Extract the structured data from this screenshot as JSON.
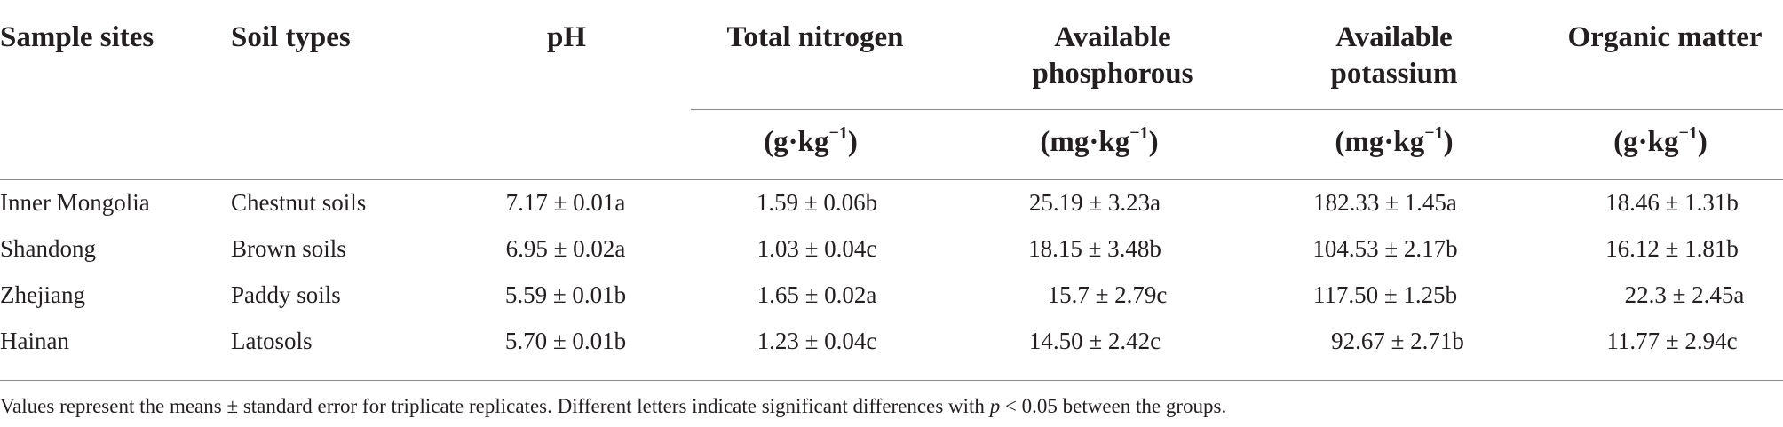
{
  "headers": {
    "sample_sites": "Sample sites",
    "soil_types": "Soil types",
    "ph": "pH",
    "total_nitrogen": "Total nitrogen",
    "available_phosphorous_line1": "Available",
    "available_phosphorous_line2": "phosphorous",
    "available_potassium_line1": "Available",
    "available_potassium_line2": "potassium",
    "organic_matter": "Organic matter"
  },
  "units": {
    "total_nitrogen": {
      "base": "(g·kg",
      "exp": "−1",
      "close": ")"
    },
    "available_phosphorous": {
      "base": "(mg·kg",
      "exp": "−1",
      "close": ")"
    },
    "available_potassium": {
      "base": "(mg·kg",
      "exp": "−1",
      "close": ")"
    },
    "organic_matter": {
      "base": "(g·kg",
      "exp": "−1",
      "close": ")"
    }
  },
  "rows": [
    {
      "site": "Inner Mongolia",
      "soil": "Chestnut soils",
      "ph": "7.17 ± 0.01a",
      "tn": "1.59 ± 0.06b",
      "ap": "25.19 ± 3.23a",
      "ak": "182.33 ± 1.45a",
      "om": "18.46 ± 1.31b"
    },
    {
      "site": "Shandong",
      "soil": "Brown soils",
      "ph": "6.95 ± 0.02a",
      "tn": "1.03 ± 0.04c",
      "ap": "18.15 ± 3.48b",
      "ak": "104.53 ± 2.17b",
      "om": "16.12 ± 1.81b"
    },
    {
      "site": "Zhejiang",
      "soil": "Paddy soils",
      "ph": "5.59 ± 0.01b",
      "tn": "1.65 ± 0.02a",
      "ap": "15.7 ± 2.79c",
      "ak": "117.50 ± 1.25b",
      "om": "22.3 ± 2.45a"
    },
    {
      "site": "Hainan",
      "soil": "Latosols",
      "ph": "5.70 ± 0.01b",
      "tn": "1.23 ± 0.04c",
      "ap": "14.50 ± 2.42c",
      "ak": "92.67 ± 2.71b",
      "om": "11.77 ± 2.94c"
    }
  ],
  "footnote": {
    "before": "Values represent the means ± standard error for triplicate replicates. Different letters indicate significant differences with ",
    "p": "p",
    "after": " < 0.05 between the groups."
  }
}
